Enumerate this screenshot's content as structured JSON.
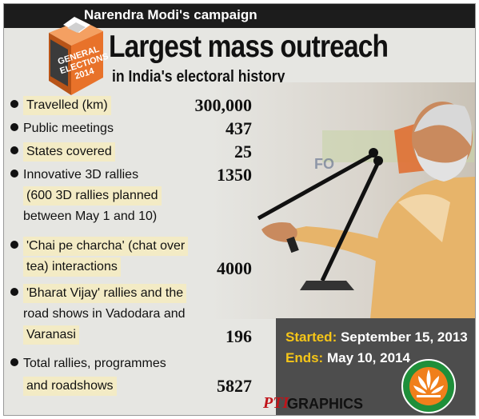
{
  "header": {
    "campaign": "Narendra Modi's campaign",
    "badge_line1": "GENERAL",
    "badge_line2": "ELECTIONS",
    "badge_line3": "2014"
  },
  "title": "Largest mass outreach",
  "subtitle": "in India's electoral history",
  "stats": [
    {
      "lines": [
        "Travelled (km)"
      ],
      "value": "300,000"
    },
    {
      "lines": [
        "Public meetings"
      ],
      "value": "437"
    },
    {
      "lines": [
        "States covered"
      ],
      "value": "25"
    },
    {
      "lines": [
        "Innovative 3D rallies",
        "(600 3D rallies planned",
        "between May 1 and 10)"
      ],
      "value": "1350"
    },
    {
      "lines": [
        "'Chai pe charcha' (chat over",
        "tea) interactions"
      ],
      "value": "4000"
    },
    {
      "lines": [
        "'Bharat Vijay' rallies and the",
        "road shows in Vadodara and",
        "Varanasi"
      ],
      "value": "196"
    },
    {
      "lines": [
        "Total rallies, programmes",
        "and roadshows"
      ],
      "value": "5827"
    }
  ],
  "dates": {
    "started_label": "Started:",
    "started_value": "September 15, 2013",
    "ends_label": "Ends:",
    "ends_value": "May 10, 2014"
  },
  "credit": {
    "mark": "PTI",
    "text": "GRAPHICS"
  },
  "colors": {
    "badge": "#e8722a",
    "highlight": "#f3ebc5",
    "date_label": "#f5c518",
    "bjp_green": "#1f8f3a",
    "bjp_orange": "#f07f1b",
    "credit_red": "#c0141a"
  }
}
